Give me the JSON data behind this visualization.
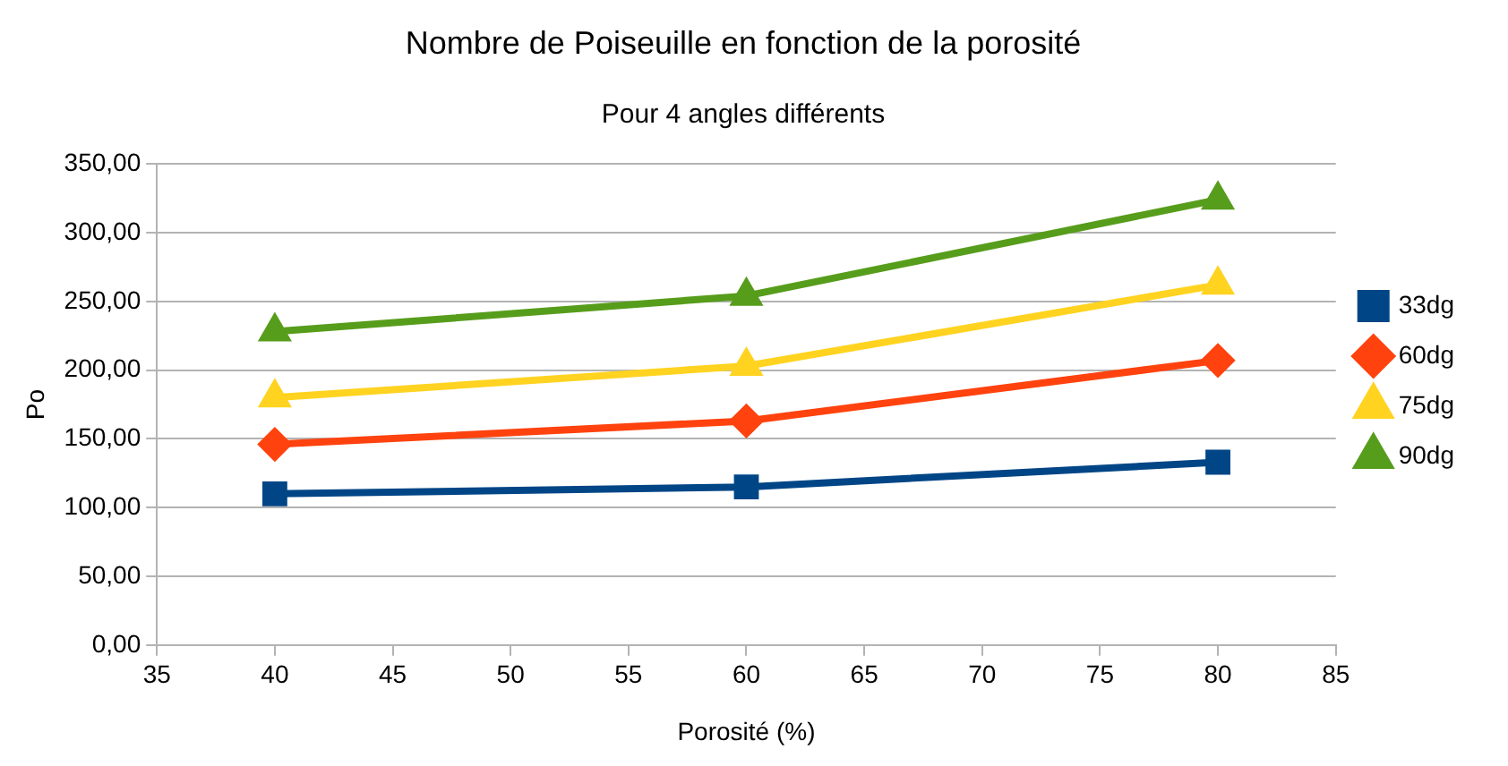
{
  "chart_data": {
    "type": "line",
    "title": "Nombre de Poiseuille en fonction de la porosité",
    "subtitle": "Pour 4 angles différents",
    "xlabel": "Porosité (%)",
    "ylabel": "Po",
    "x": [
      40,
      60,
      80
    ],
    "series": [
      {
        "name": "33dg",
        "color": "#004586",
        "marker": "square",
        "values": [
          110,
          115,
          133
        ]
      },
      {
        "name": "60dg",
        "color": "#ff420e",
        "marker": "diamond",
        "values": [
          146,
          163,
          207
        ]
      },
      {
        "name": "75dg",
        "color": "#ffd320",
        "marker": "triangle",
        "values": [
          180,
          203,
          262
        ]
      },
      {
        "name": "90dg",
        "color": "#579d1c",
        "marker": "triangle",
        "values": [
          228,
          254,
          324
        ]
      }
    ],
    "xlim": [
      35,
      85
    ],
    "xticks": [
      35,
      40,
      45,
      50,
      55,
      60,
      65,
      70,
      75,
      80,
      85
    ],
    "ylim": [
      0,
      350
    ],
    "yticks": [
      {
        "value": 0,
        "label": "0,00"
      },
      {
        "value": 50,
        "label": "50,00"
      },
      {
        "value": 100,
        "label": "100,00"
      },
      {
        "value": 150,
        "label": "150,00"
      },
      {
        "value": 200,
        "label": "200,00"
      },
      {
        "value": 250,
        "label": "250,00"
      },
      {
        "value": 300,
        "label": "300,00"
      },
      {
        "value": 350,
        "label": "350,00"
      }
    ],
    "grid": "y",
    "legend": "right",
    "line_style": "solid"
  }
}
